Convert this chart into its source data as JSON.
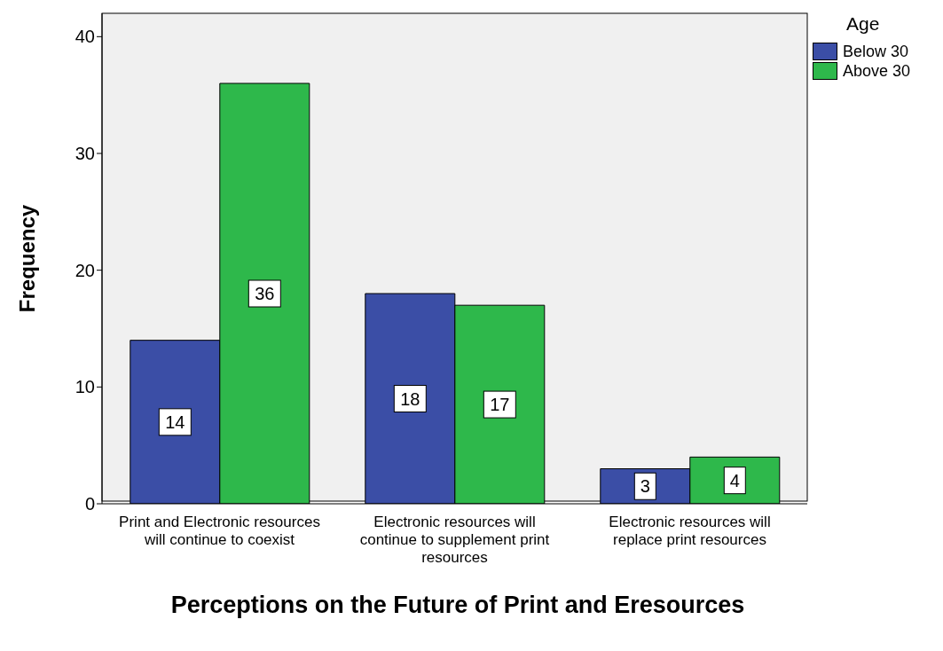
{
  "chart_data": {
    "type": "bar",
    "xlabel": "Perceptions on the Future of Print and Eresources",
    "ylabel": "Frequency",
    "legend_title": "Age",
    "legend": "top right",
    "categories": [
      "Print and Electronic resources will continue to coexist",
      "Electronic resources will continue to supplement print resources",
      "Electronic resources will replace print resources"
    ],
    "series": [
      {
        "name": "Below 30",
        "color": "#3b4ea6",
        "values": [
          14,
          18,
          3
        ]
      },
      {
        "name": "Above 30",
        "color": "#2eb84b",
        "values": [
          36,
          17,
          4
        ]
      }
    ],
    "ylim": [
      0,
      42
    ],
    "yticks": [
      0,
      10,
      20,
      30,
      40
    ],
    "grid": false,
    "data_labels": true
  }
}
